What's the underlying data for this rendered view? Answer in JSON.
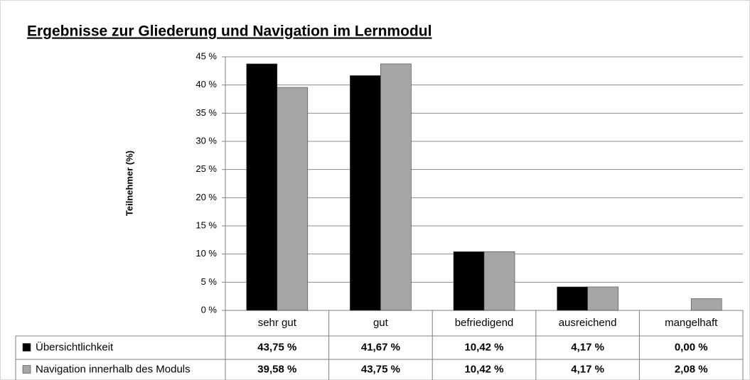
{
  "chart_data": {
    "type": "bar",
    "title": "Ergebnisse zur Gliederung und Navigation im Lernmodul",
    "y_label": "Teilnehmer (%)",
    "categories": [
      "sehr gut",
      "gut",
      "befriedigend",
      "ausreichend",
      "mangelhaft"
    ],
    "series": [
      {
        "name": "Übersichtlichkeit",
        "color": "#000000",
        "values": [
          43.75,
          41.67,
          10.42,
          4.17,
          0.0
        ],
        "value_labels": [
          "43,75 %",
          "41,67 %",
          "10,42 %",
          "4,17 %",
          "0,00 %"
        ]
      },
      {
        "name": "Navigation innerhalb des Moduls",
        "color": "#a6a6a6",
        "values": [
          39.58,
          43.75,
          10.42,
          4.17,
          2.08
        ],
        "value_labels": [
          "39,58 %",
          "43,75 %",
          "10,42 %",
          "4,17 %",
          "2,08 %"
        ]
      }
    ],
    "ylim": [
      0,
      45
    ],
    "yticks": [
      {
        "value": 0,
        "label": "0 %"
      },
      {
        "value": 5,
        "label": "5 %"
      },
      {
        "value": 10,
        "label": "10 %"
      },
      {
        "value": 15,
        "label": "15 %"
      },
      {
        "value": 20,
        "label": "20 %"
      },
      {
        "value": 25,
        "label": "25 %"
      },
      {
        "value": 30,
        "label": "30 %"
      },
      {
        "value": 35,
        "label": "35 %"
      },
      {
        "value": 40,
        "label": "40 %"
      },
      {
        "value": 45,
        "label": "45 %"
      }
    ],
    "grid": true
  }
}
